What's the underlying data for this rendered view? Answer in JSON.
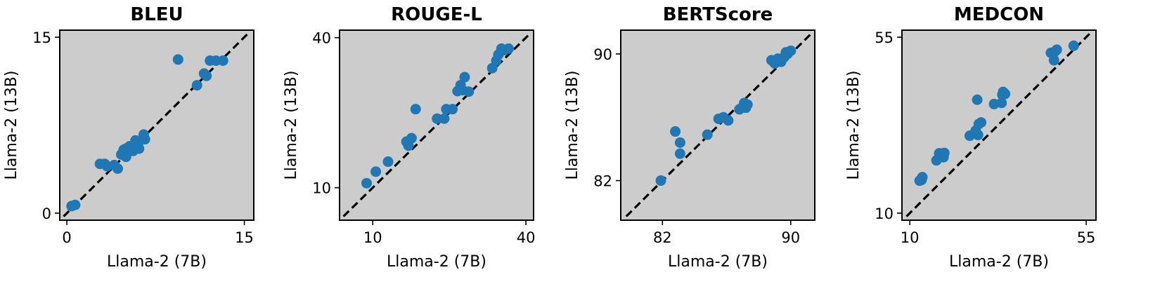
{
  "chart_data": [
    {
      "type": "scatter",
      "title": "BLEU",
      "xlabel": "Llama-2 (7B)",
      "ylabel": "Llama-2 (13B)",
      "xlim": [
        -0.6,
        15.8
      ],
      "ylim": [
        -0.6,
        15.6
      ],
      "xticks": [
        0,
        15
      ],
      "yticks": [
        0,
        15
      ],
      "diagonal": true,
      "point_color": "#1f77b4",
      "background": "#cccccc",
      "points": [
        [
          0.4,
          0.6
        ],
        [
          0.7,
          0.7
        ],
        [
          2.8,
          4.2
        ],
        [
          3.2,
          4.2
        ],
        [
          3.4,
          4.0
        ],
        [
          4.0,
          4.1
        ],
        [
          4.3,
          3.8
        ],
        [
          4.6,
          5.0
        ],
        [
          4.8,
          5.4
        ],
        [
          5.0,
          5.5
        ],
        [
          5.0,
          4.8
        ],
        [
          5.3,
          5.7
        ],
        [
          5.6,
          5.3
        ],
        [
          5.8,
          6.2
        ],
        [
          6.0,
          5.8
        ],
        [
          6.1,
          5.5
        ],
        [
          6.5,
          6.7
        ],
        [
          6.6,
          6.3
        ],
        [
          9.4,
          13.1
        ],
        [
          11.0,
          10.9
        ],
        [
          11.6,
          11.9
        ],
        [
          11.8,
          11.7
        ],
        [
          12.1,
          13.0
        ],
        [
          12.6,
          13.0
        ],
        [
          13.2,
          13.0
        ]
      ]
    },
    {
      "type": "scatter",
      "title": "ROUGE-L",
      "xlabel": "Llama-2 (7B)",
      "ylabel": "Llama-2 (13B)",
      "xlim": [
        3.5,
        41.5
      ],
      "ylim": [
        3.5,
        41.5
      ],
      "xticks": [
        10,
        40
      ],
      "yticks": [
        10,
        40
      ],
      "diagonal": true,
      "point_color": "#1f77b4",
      "background": "#cccccc",
      "points": [
        [
          8.8,
          10.9
        ],
        [
          10.6,
          13.2
        ],
        [
          13.0,
          15.2
        ],
        [
          16.6,
          19.2
        ],
        [
          17.0,
          18.4
        ],
        [
          17.6,
          19.9
        ],
        [
          18.4,
          25.7
        ],
        [
          22.6,
          23.8
        ],
        [
          24.0,
          23.8
        ],
        [
          24.4,
          25.7
        ],
        [
          25.6,
          25.7
        ],
        [
          26.6,
          29.3
        ],
        [
          27.2,
          30.5
        ],
        [
          27.6,
          29.5
        ],
        [
          28.0,
          32.1
        ],
        [
          28.8,
          29.2
        ],
        [
          33.4,
          33.9
        ],
        [
          34.2,
          35.4
        ],
        [
          34.6,
          36.6
        ],
        [
          35.2,
          37.8
        ],
        [
          35.8,
          37.5
        ],
        [
          36.6,
          37.8
        ]
      ]
    },
    {
      "type": "scatter",
      "title": "BERTScore",
      "xlabel": "Llama-2 (7B)",
      "ylabel": "Llama-2 (13B)",
      "xlim": [
        79.4,
        91.5
      ],
      "ylim": [
        79.5,
        91.5
      ],
      "xticks": [
        82,
        90
      ],
      "yticks": [
        82,
        90
      ],
      "diagonal": true,
      "point_color": "#1f77b4",
      "background": "#cccccc",
      "points": [
        [
          81.9,
          82.0
        ],
        [
          82.8,
          85.1
        ],
        [
          83.1,
          84.4
        ],
        [
          83.1,
          83.7
        ],
        [
          84.8,
          84.9
        ],
        [
          85.5,
          85.9
        ],
        [
          85.8,
          86.0
        ],
        [
          86.1,
          85.8
        ],
        [
          86.8,
          86.5
        ],
        [
          87.1,
          86.9
        ],
        [
          87.2,
          86.6
        ],
        [
          87.3,
          86.8
        ],
        [
          88.8,
          89.6
        ],
        [
          89.0,
          89.4
        ],
        [
          89.2,
          89.7
        ],
        [
          89.4,
          89.5
        ],
        [
          89.6,
          89.8
        ],
        [
          89.8,
          90.0
        ],
        [
          90.0,
          90.2
        ],
        [
          89.7,
          90.1
        ]
      ]
    },
    {
      "type": "scatter",
      "title": "MEDCON",
      "xlabel": "Llama-2 (7B)",
      "ylabel": "Llama-2 (13B)",
      "xlim": [
        8.0,
        57.5
      ],
      "ylim": [
        8.2,
        56.8
      ],
      "xticks": [
        10,
        55
      ],
      "yticks": [
        10,
        55
      ],
      "diagonal": true,
      "point_color": "#1f77b4",
      "background": "#cccccc",
      "points": [
        [
          12.5,
          18.3
        ],
        [
          13.2,
          19.2
        ],
        [
          13.0,
          18.5
        ],
        [
          16.8,
          23.5
        ],
        [
          17.5,
          25.3
        ],
        [
          18.8,
          25.4
        ],
        [
          18.6,
          24.3
        ],
        [
          25.3,
          29.8
        ],
        [
          26.8,
          31.1
        ],
        [
          27.4,
          30.0
        ],
        [
          27.2,
          39.0
        ],
        [
          27.6,
          32.8
        ],
        [
          28.2,
          33.2
        ],
        [
          31.5,
          37.9
        ],
        [
          33.4,
          38.2
        ],
        [
          33.6,
          40.3
        ],
        [
          33.8,
          41.0
        ],
        [
          34.3,
          40.5
        ],
        [
          46.0,
          51.0
        ],
        [
          46.8,
          49.1
        ],
        [
          47.0,
          51.3
        ],
        [
          47.5,
          51.8
        ],
        [
          51.8,
          52.8
        ]
      ]
    }
  ]
}
